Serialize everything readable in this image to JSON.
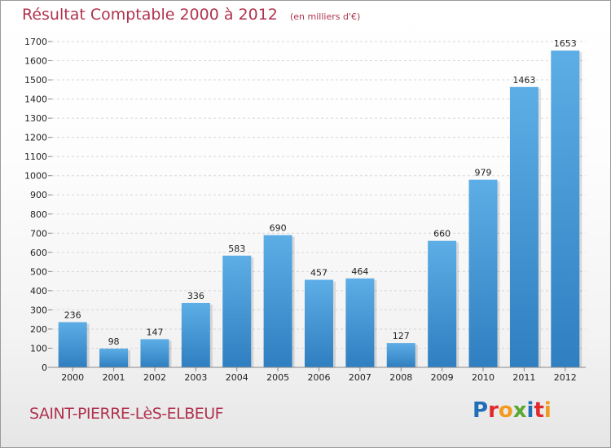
{
  "title": "Résultat Comptable 2000 à 2012",
  "subtitle": "(en milliers d'€)",
  "commune": "SAINT-PIERRE-LèS-ELBEUF",
  "logo": {
    "text": "Proxiti",
    "letters": [
      {
        "ch": "P",
        "color": "#1f6fb8"
      },
      {
        "ch": "r",
        "color": "#e2282d"
      },
      {
        "ch": "o",
        "color": "#f29a1d"
      },
      {
        "ch": "x",
        "color": "#5aa832"
      },
      {
        "ch": "i",
        "color": "#1f6fb8"
      },
      {
        "ch": "t",
        "color": "#e2282d"
      },
      {
        "ch": "i",
        "color": "#f29a1d"
      }
    ]
  },
  "colors": {
    "bar_light": "#5dade6",
    "bar_dark": "#2f7fc1",
    "accent": "#b0334d",
    "grid": "#d6d6d6",
    "axis_text": "#222222"
  },
  "chart_data": {
    "type": "bar",
    "categories": [
      "2000",
      "2001",
      "2002",
      "2003",
      "2004",
      "2005",
      "2006",
      "2007",
      "2008",
      "2009",
      "2010",
      "2011",
      "2012"
    ],
    "values": [
      236,
      98,
      147,
      336,
      583,
      690,
      457,
      464,
      127,
      660,
      979,
      1463,
      1653
    ],
    "ylim": [
      0,
      1700
    ],
    "yticks": [
      0,
      100,
      200,
      300,
      400,
      500,
      600,
      700,
      800,
      900,
      1000,
      1100,
      1200,
      1300,
      1400,
      1500,
      1600,
      1700
    ],
    "grid": true,
    "xlabel": "",
    "ylabel": ""
  }
}
